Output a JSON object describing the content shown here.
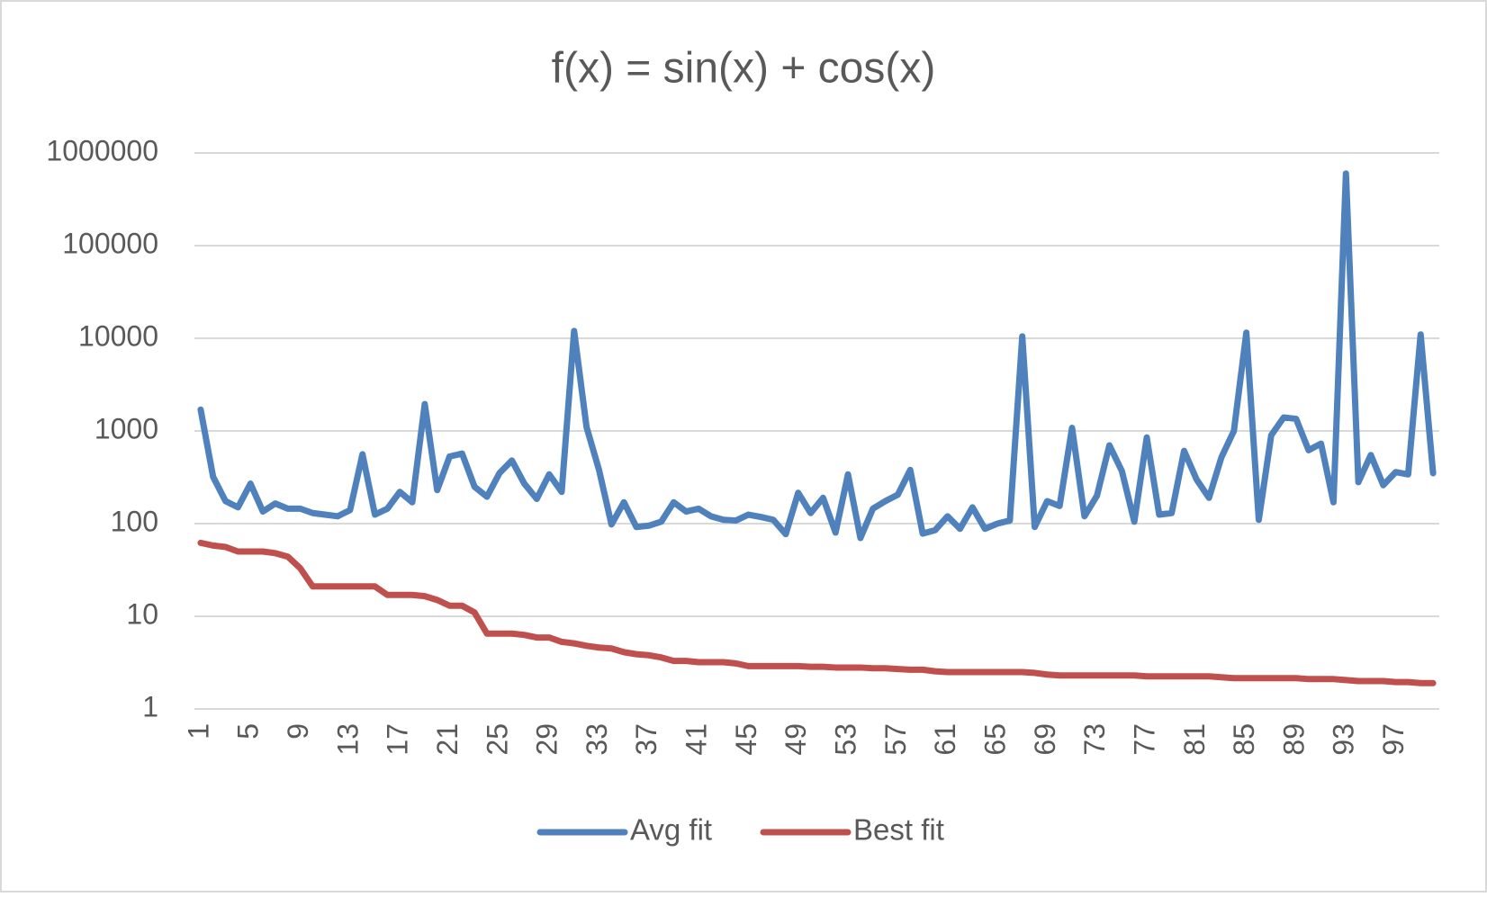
{
  "chart_data": {
    "type": "line",
    "title": "f(x) = sin(x) + cos(x)",
    "categories": [
      "1",
      null,
      null,
      null,
      "5",
      null,
      null,
      null,
      "9",
      null,
      null,
      null,
      "13",
      null,
      null,
      null,
      "17",
      null,
      null,
      null,
      "21",
      null,
      null,
      null,
      "25",
      null,
      null,
      null,
      "29",
      null,
      null,
      null,
      "33",
      null,
      null,
      null,
      "37",
      null,
      null,
      null,
      "41",
      null,
      null,
      null,
      "45",
      null,
      null,
      null,
      "49",
      null,
      null,
      null,
      "53",
      null,
      null,
      null,
      "57",
      null,
      null,
      null,
      "61",
      null,
      null,
      null,
      "65",
      null,
      null,
      null,
      "69",
      null,
      null,
      null,
      "73",
      null,
      null,
      null,
      "77",
      null,
      null,
      null,
      "81",
      null,
      null,
      null,
      "85",
      null,
      null,
      null,
      "89",
      null,
      null,
      null,
      "93",
      null,
      null,
      null,
      "97",
      null,
      null,
      null
    ],
    "series": [
      {
        "name": "Avg fit",
        "color": "#4f81bd",
        "values": [
          1700,
          320,
          175,
          150,
          270,
          135,
          165,
          145,
          145,
          130,
          125,
          120,
          140,
          560,
          125,
          145,
          220,
          170,
          1950,
          230,
          530,
          570,
          250,
          195,
          350,
          480,
          270,
          185,
          340,
          220,
          12000,
          1100,
          380,
          98,
          170,
          92,
          95,
          105,
          170,
          135,
          145,
          120,
          110,
          108,
          125,
          118,
          110,
          77,
          215,
          130,
          190,
          80,
          340,
          70,
          145,
          175,
          205,
          380,
          78,
          85,
          120,
          88,
          150,
          88,
          100,
          108,
          10500,
          92,
          175,
          155,
          1080,
          120,
          200,
          700,
          370,
          105,
          850,
          125,
          130,
          610,
          300,
          190,
          520,
          1000,
          11500,
          110,
          900,
          1400,
          1350,
          620,
          730,
          170,
          600000,
          280,
          550,
          260,
          360,
          340,
          11000,
          350
        ]
      },
      {
        "name": "Best fit",
        "color": "#c0504d",
        "values": [
          62,
          58,
          56,
          50,
          50,
          50,
          48,
          44,
          33,
          21,
          21,
          21,
          21,
          21,
          21,
          17,
          17,
          17,
          16.5,
          15,
          13,
          13,
          11,
          6.5,
          6.5,
          6.5,
          6.3,
          5.9,
          5.9,
          5.3,
          5.1,
          4.8,
          4.6,
          4.5,
          4.1,
          3.9,
          3.8,
          3.6,
          3.3,
          3.3,
          3.2,
          3.2,
          3.2,
          3.1,
          2.9,
          2.9,
          2.9,
          2.9,
          2.9,
          2.85,
          2.85,
          2.8,
          2.8,
          2.8,
          2.75,
          2.75,
          2.7,
          2.65,
          2.65,
          2.55,
          2.5,
          2.5,
          2.5,
          2.5,
          2.5,
          2.5,
          2.5,
          2.45,
          2.35,
          2.3,
          2.3,
          2.3,
          2.3,
          2.3,
          2.3,
          2.3,
          2.25,
          2.25,
          2.25,
          2.25,
          2.25,
          2.25,
          2.2,
          2.15,
          2.15,
          2.15,
          2.15,
          2.15,
          2.15,
          2.1,
          2.1,
          2.1,
          2.05,
          2.0,
          2.0,
          2.0,
          1.95,
          1.95,
          1.9,
          1.9
        ]
      }
    ],
    "log_scale": true,
    "ylim": [
      1,
      1000000
    ],
    "yticks": [
      1,
      10,
      100,
      1000,
      10000,
      100000,
      1000000
    ],
    "grid": true,
    "legend": "bottom"
  }
}
